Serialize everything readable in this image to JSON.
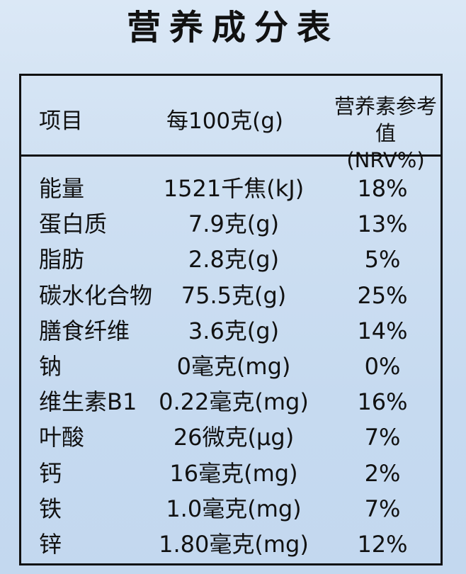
{
  "title": "营养成分表",
  "header": {
    "item": "项目",
    "per": "每100克(g)",
    "nrv_line1": "营养素参考值",
    "nrv_line2": "(NRV%)"
  },
  "rows": [
    {
      "name": "能量",
      "value": "1521千焦(kJ)",
      "nrv": "18%"
    },
    {
      "name": "蛋白质",
      "value": "7.9克(g)",
      "nrv": "13%"
    },
    {
      "name": "脂肪",
      "value": "2.8克(g)",
      "nrv": "5%"
    },
    {
      "name": "碳水化合物",
      "value": "75.5克(g)",
      "nrv": "25%"
    },
    {
      "name": "膳食纤维",
      "value": "3.6克(g)",
      "nrv": "14%"
    },
    {
      "name": "钠",
      "value": "0毫克(mg)",
      "nrv": "0%"
    },
    {
      "name": "维生素B1",
      "value": "0.22毫克(mg)",
      "nrv": "16%"
    },
    {
      "name": "叶酸",
      "value": "26微克(μg)",
      "nrv": "7%"
    },
    {
      "name": "钙",
      "value": "16毫克(mg)",
      "nrv": "2%"
    },
    {
      "name": "铁",
      "value": "1.0毫克(mg)",
      "nrv": "7%"
    },
    {
      "name": "锌",
      "value": "1.80毫克(mg)",
      "nrv": "12%"
    }
  ]
}
